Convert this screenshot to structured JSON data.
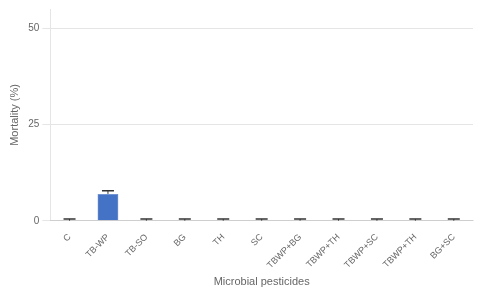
{
  "chart_data": {
    "type": "bar",
    "categories": [
      "C",
      "TB-WP",
      "TB-SO",
      "BG",
      "TH",
      "SC",
      "TBWP+BG",
      "TBWP+TH",
      "TBWP+SC",
      "TBWP+TH",
      "BG+SC"
    ],
    "values": [
      0.0,
      7.0,
      0.0,
      0.0,
      0.0,
      0.0,
      0.0,
      0.0,
      0.0,
      0.0,
      0.0
    ],
    "errors": [
      0.5,
      0.8,
      0.5,
      0.5,
      0.5,
      0.5,
      0.5,
      0.5,
      0.5,
      0.5,
      0.5
    ],
    "color": "#4472C4",
    "xlabel": "Microbial pesticides",
    "ylabel": "Mortality (%)",
    "ylim": [
      0,
      55
    ],
    "yticks": [
      0,
      25,
      50
    ],
    "grid": true
  }
}
